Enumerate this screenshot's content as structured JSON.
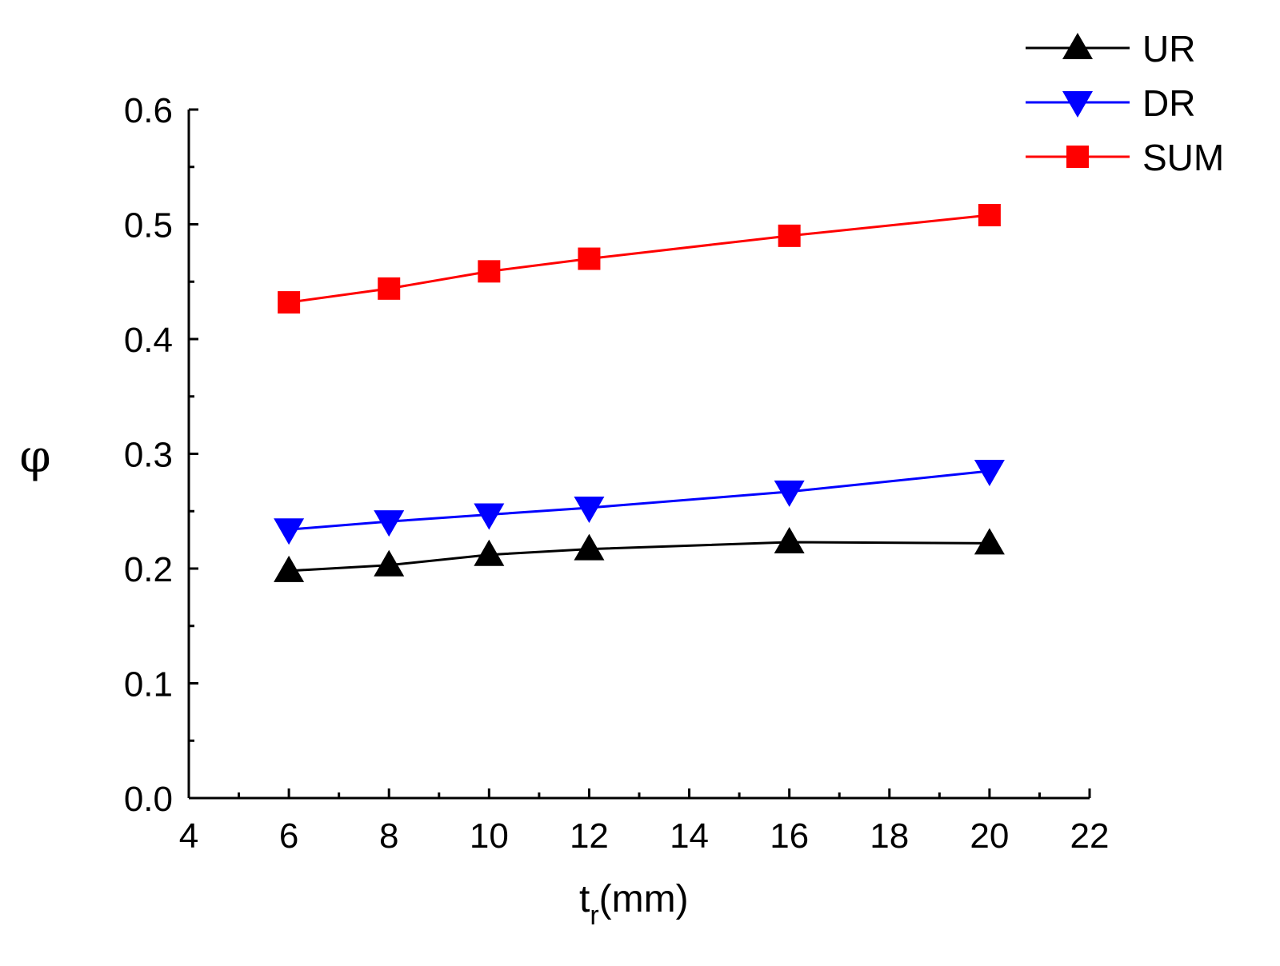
{
  "chart_data": {
    "type": "line",
    "title": "",
    "xlabel_main": "t",
    "xlabel_sub": "r",
    "xlabel_unit": "(mm)",
    "ylabel": "φ",
    "xlim": [
      4,
      22
    ],
    "ylim": [
      0.0,
      0.6
    ],
    "x_major_ticks": [
      4,
      6,
      8,
      10,
      12,
      14,
      16,
      18,
      20,
      22
    ],
    "x_tick_labels": [
      "4",
      "6",
      "8",
      "10",
      "12",
      "14",
      "16",
      "18",
      "20",
      "22"
    ],
    "y_major_ticks": [
      0.0,
      0.1,
      0.2,
      0.3,
      0.4,
      0.5,
      0.6
    ],
    "y_tick_labels": [
      "0.0",
      "0.1",
      "0.2",
      "0.3",
      "0.4",
      "0.5",
      "0.6"
    ],
    "grid": false,
    "legend_position": "top-right",
    "x": [
      6,
      8,
      10,
      12,
      16,
      20
    ],
    "series": [
      {
        "name": "UR",
        "color": "#000000",
        "marker": "triangle-up",
        "values": [
          0.198,
          0.203,
          0.212,
          0.217,
          0.223,
          0.222
        ]
      },
      {
        "name": "DR",
        "color": "#0000ff",
        "marker": "triangle-down",
        "values": [
          0.234,
          0.241,
          0.247,
          0.253,
          0.267,
          0.285
        ]
      },
      {
        "name": "SUM",
        "color": "#ff0000",
        "marker": "square",
        "values": [
          0.432,
          0.444,
          0.459,
          0.47,
          0.49,
          0.508
        ]
      }
    ]
  }
}
